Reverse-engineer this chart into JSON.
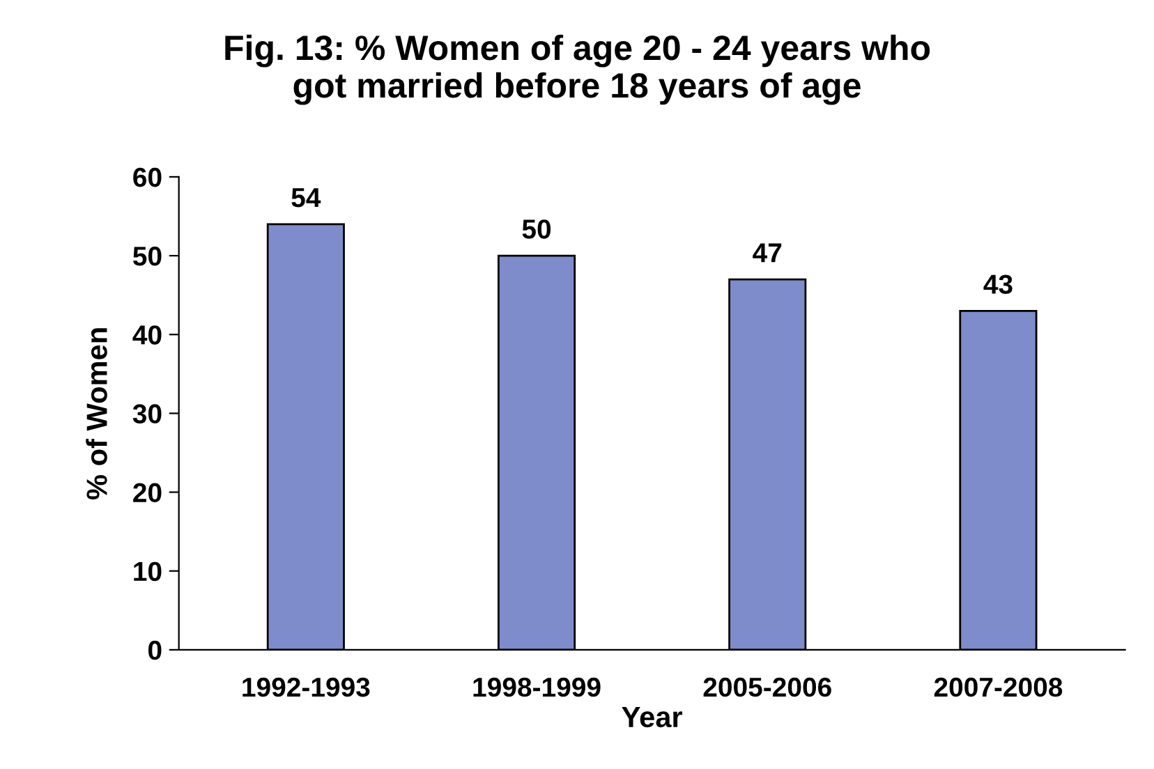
{
  "chart_data": {
    "type": "bar",
    "title": "Fig. 13: % Women of age 20 - 24 years who\ngot married before 18 years of age",
    "xlabel": "Year",
    "ylabel": "% of Women",
    "categories": [
      "1992-1993",
      "1998-1999",
      "2005-2006",
      "2007-2008"
    ],
    "values": [
      54,
      50,
      47,
      43
    ],
    "color": "#7f8ccb",
    "ylim": [
      0,
      60
    ],
    "yticks": [
      0,
      10,
      20,
      30,
      40,
      50,
      60
    ],
    "grid": false,
    "data_labels": true,
    "legend": false
  }
}
